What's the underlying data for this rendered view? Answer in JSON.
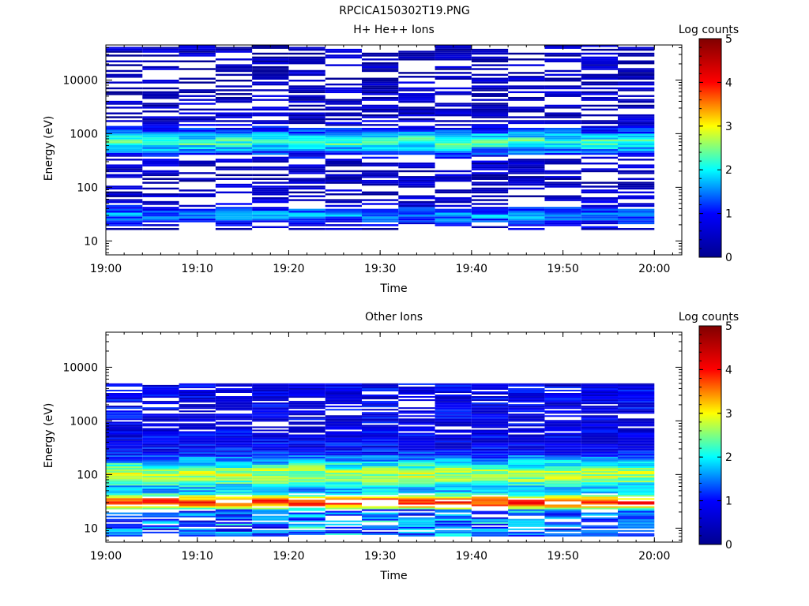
{
  "figure_title": "RPCICA150302T19.PNG",
  "colors": {
    "colormap": [
      "#00008f",
      "#0000ff",
      "#00ffff",
      "#ffff00",
      "#ff0000",
      "#800000"
    ],
    "missing": "#ffffff",
    "axis": "#000000"
  },
  "chart_data": [
    {
      "type": "heatmap",
      "title": "H+ He++ Ions",
      "xlabel": "Time",
      "ylabel": "Energy (eV)",
      "x_ticks": [
        "19:00",
        "19:10",
        "19:20",
        "19:30",
        "19:40",
        "19:50",
        "20:00"
      ],
      "xlim": [
        "19:00",
        "20:03"
      ],
      "y_scale": "log",
      "ylim": [
        5.5,
        45000
      ],
      "y_ticks": [
        "10",
        "100",
        "1000",
        "10000"
      ],
      "colorbar_title": "Log counts",
      "colorbar_range": [
        0,
        5
      ],
      "colorbar_ticks": [
        "0",
        "1",
        "2",
        "3",
        "4",
        "5"
      ],
      "time_bins": [
        "19:02",
        "19:06",
        "19:10",
        "19:14",
        "19:18",
        "19:22",
        "19:26",
        "19:30",
        "19:34",
        "19:38",
        "19:42",
        "19:46",
        "19:50",
        "19:54",
        "19:58"
      ],
      "energy_range": [
        16,
        45000
      ],
      "profile": {
        "peak_energy": 700,
        "peak_level": 2.2,
        "low_energy": 30,
        "low_level": 1.5,
        "background_level": 0.4,
        "fill_fraction": 0.55
      }
    },
    {
      "type": "heatmap",
      "title": "Other Ions",
      "xlabel": "Time",
      "ylabel": "Energy (eV)",
      "x_ticks": [
        "19:00",
        "19:10",
        "19:20",
        "19:30",
        "19:40",
        "19:50",
        "20:00"
      ],
      "xlim": [
        "19:00",
        "20:03"
      ],
      "y_scale": "log",
      "ylim": [
        5.5,
        45000
      ],
      "y_ticks": [
        "10",
        "100",
        "1000",
        "10000"
      ],
      "colorbar_title": "Log counts",
      "colorbar_range": [
        0,
        5
      ],
      "colorbar_ticks": [
        "0",
        "1",
        "2",
        "3",
        "4",
        "5"
      ],
      "time_bins": [
        "19:02",
        "19:06",
        "19:10",
        "19:14",
        "19:18",
        "19:22",
        "19:26",
        "19:30",
        "19:34",
        "19:38",
        "19:42",
        "19:46",
        "19:50",
        "19:54",
        "19:58"
      ],
      "energy_range": [
        7,
        5000
      ],
      "profile": {
        "peak_energy": 30,
        "peak_level": 3.9,
        "plateau_energy": 100,
        "plateau_level": 2.7,
        "background_level": 0.8,
        "fill_fraction": 0.8
      }
    }
  ]
}
